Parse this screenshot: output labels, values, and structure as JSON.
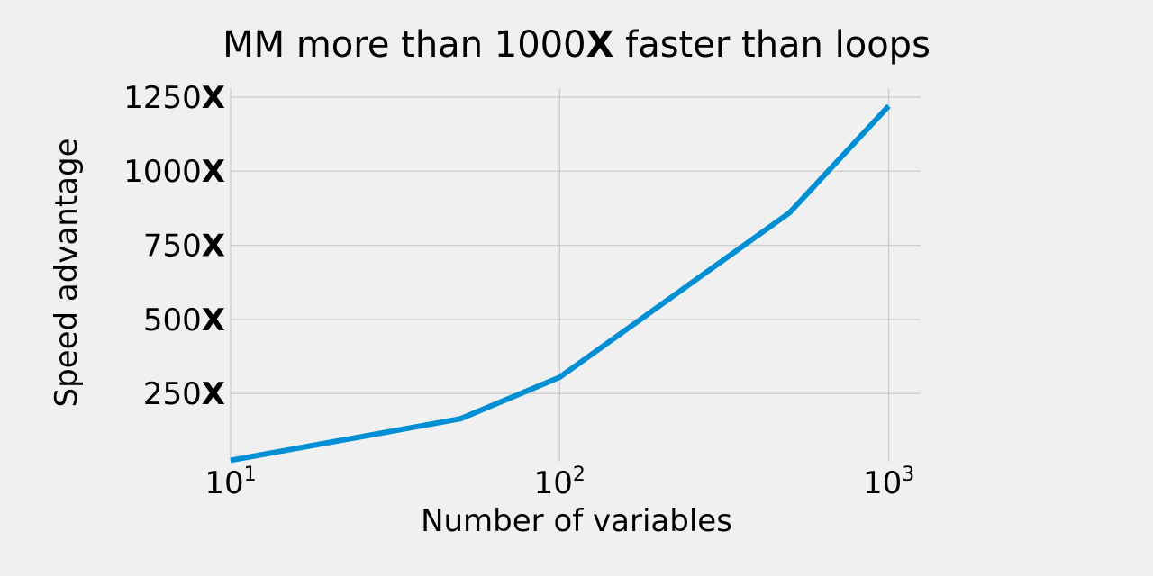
{
  "chart_data": {
    "type": "line",
    "title_prefix": "MM more than 1000",
    "title_mark": "X",
    "title_suffix": " faster than loops",
    "xlabel": "Number of variables",
    "ylabel": "Speed advantage",
    "x_scale": "log",
    "xlim": [
      10,
      1250
    ],
    "ylim": [
      20,
      1280
    ],
    "x_ticks": [
      {
        "value": 10,
        "base": "10",
        "exp": "1"
      },
      {
        "value": 100,
        "base": "10",
        "exp": "2"
      },
      {
        "value": 1000,
        "base": "10",
        "exp": "3"
      }
    ],
    "y_ticks": [
      {
        "value": 250,
        "number": "250",
        "mark": "X"
      },
      {
        "value": 500,
        "number": "500",
        "mark": "X"
      },
      {
        "value": 750,
        "number": "750",
        "mark": "X"
      },
      {
        "value": 1000,
        "number": "1000",
        "mark": "X"
      },
      {
        "value": 1250,
        "number": "1250",
        "mark": "X"
      }
    ],
    "grid": true,
    "series": [
      {
        "color": "#008fd5",
        "x": [
          10,
          50,
          100,
          500,
          1000
        ],
        "y": [
          25,
          165,
          305,
          860,
          1220
        ]
      }
    ]
  }
}
